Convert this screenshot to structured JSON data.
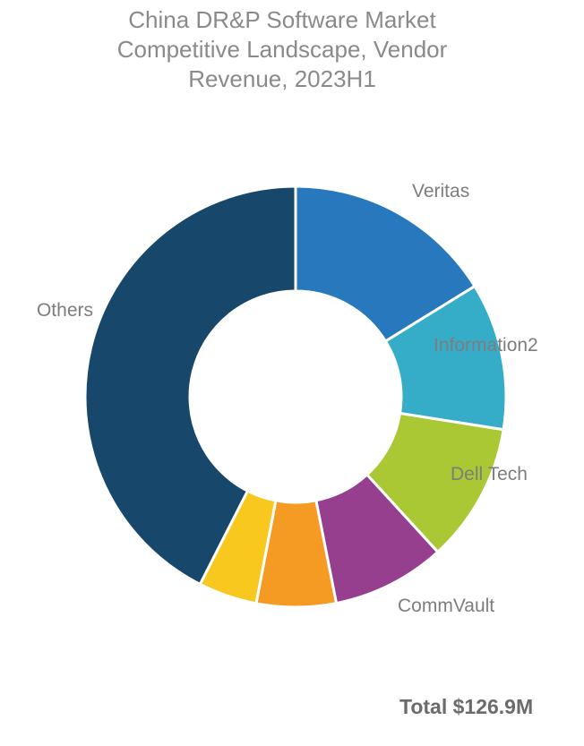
{
  "chart_data": {
    "type": "pie",
    "variant": "donut",
    "title_lines": [
      "China DR&P Software Market",
      "Competitive Landscape, Vendor",
      "Revenue, 2023H1"
    ],
    "total_label": "Total $126.9M",
    "legend": "none",
    "slices": [
      {
        "label": "Veritas",
        "share": 0.162,
        "color": "#2878bd"
      },
      {
        "label": "Information2",
        "share": 0.113,
        "color": "#36adc8"
      },
      {
        "label": "Dell Tech",
        "share": 0.107,
        "color": "#a9c833"
      },
      {
        "label": "CommVault",
        "share": 0.087,
        "color": "#963f8f"
      },
      {
        "label": "",
        "share": 0.061,
        "color": "#f59a23"
      },
      {
        "label": "",
        "share": 0.045,
        "color": "#f8c81e"
      },
      {
        "label": "Others",
        "share": 0.425,
        "color": "#17476b"
      }
    ]
  }
}
